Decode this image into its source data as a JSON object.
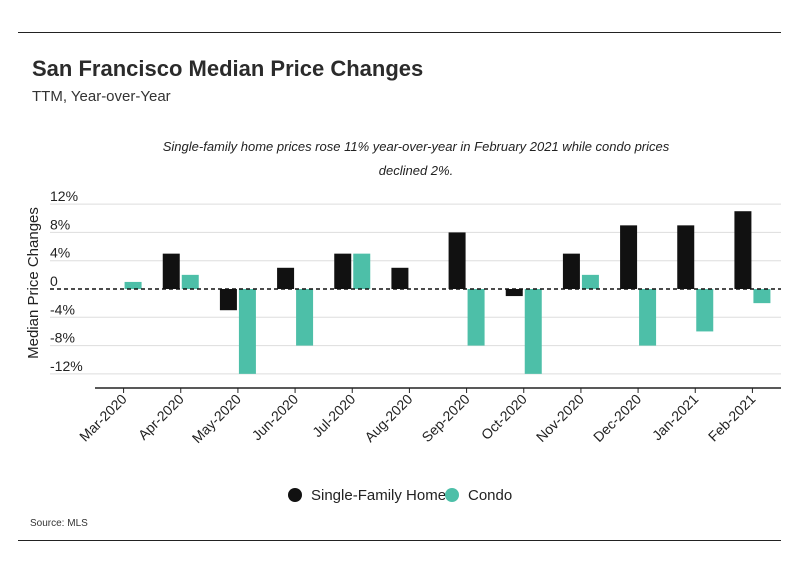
{
  "header": {
    "title": "San Francisco Median Price Changes",
    "subtitle": "TTM, Year-over-Year"
  },
  "footer": {
    "source": "Source: MLS"
  },
  "colors": {
    "single_family": "#111111",
    "condo": "#4dbfa8",
    "grid": "#dddddd"
  },
  "chart_data": {
    "type": "bar",
    "annotation": [
      "Single-family home prices rose 11% year-over-year in February 2021 while condo prices",
      "declined 2%."
    ],
    "ylabel": "Median Price Changes",
    "xlabel": "",
    "ylim": [
      -14,
      14
    ],
    "yticks": [
      12,
      8,
      4,
      0,
      -4,
      -8,
      -12
    ],
    "ytick_labels": [
      "12%",
      "8%",
      "4%",
      "0",
      "-4%",
      "-8%",
      "-12%"
    ],
    "grid": true,
    "legend_position": "bottom",
    "categories": [
      "Mar-2020",
      "Apr-2020",
      "May-2020",
      "Jun-2020",
      "Jul-2020",
      "Aug-2020",
      "Sep-2020",
      "Oct-2020",
      "Nov-2020",
      "Dec-2020",
      "Jan-2021",
      "Feb-2021"
    ],
    "series": [
      {
        "name": "Single-Family Home",
        "values": [
          0,
          5,
          -3,
          3,
          5,
          3,
          8,
          -1,
          5,
          9,
          9,
          11
        ]
      },
      {
        "name": "Condo",
        "values": [
          1,
          2,
          -12,
          -8,
          5,
          0,
          -8,
          -12,
          2,
          -8,
          -6,
          -2
        ]
      }
    ]
  }
}
